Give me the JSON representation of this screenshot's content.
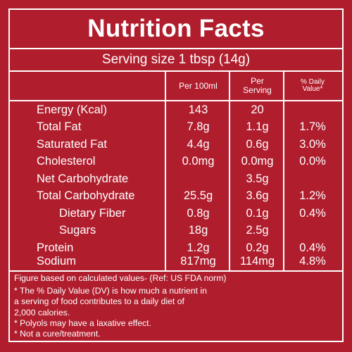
{
  "title": "Nutrition Facts",
  "serving": "Serving size 1 tbsp (14g)",
  "headers": {
    "per100": "Per 100ml",
    "per_serving_line1": "Per",
    "per_serving_line2": "Serving",
    "dv_line1": "% Daily",
    "dv_line2": "Value*"
  },
  "rows": [
    {
      "name": "Energy (Kcal)",
      "per100": "143",
      "serving": "20",
      "dv": ""
    },
    {
      "name": "Total Fat",
      "per100": "7.8g",
      "serving": "1.1g",
      "dv": "1.7%"
    },
    {
      "name": "Saturated Fat",
      "per100": "4.4g",
      "serving": "0.6g",
      "dv": "3.0%"
    },
    {
      "name": "Cholesterol",
      "per100": "0.0mg",
      "serving": "0.0mg",
      "dv": "0.0%"
    },
    {
      "name": "Net Carbohydrate",
      "per100": "",
      "serving": "3.5g",
      "dv": ""
    },
    {
      "name": "Total Carbohydrate",
      "per100": "25.5g",
      "serving": "3.6g",
      "dv": "1.2%"
    },
    {
      "name": "Dietary Fiber",
      "per100": "0.8g",
      "serving": "0.1g",
      "dv": "0.4%"
    },
    {
      "name": "Sugars",
      "per100": "18g",
      "serving": "2.5g",
      "dv": ""
    },
    {
      "name": "Protein",
      "per100": "1.2g",
      "serving": "0.2g",
      "dv": "0.4%"
    },
    {
      "name": "Sodium",
      "per100": "817mg",
      "serving": "114mg",
      "dv": "4.8%"
    }
  ],
  "footnotes": {
    "reference": "Figure based on calculated values- (Ref: US FDA norm)",
    "dv_note_line1": "* The % Daily Value (DV) is how much a nutrient in",
    "dv_note_line2": "a serving of food contributes to a daily diet of",
    "dv_note_line3": "2,000 calories.",
    "polyols": "* Polyols may have a laxative effect.",
    "cure": "* Not a cure/treatment."
  },
  "colors": {
    "background": "#b01e2e",
    "text": "#ffffff"
  }
}
